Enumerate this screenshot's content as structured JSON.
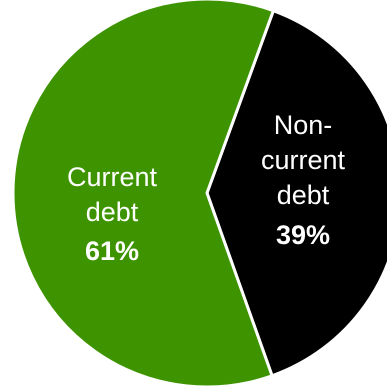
{
  "chart_data": {
    "type": "pie",
    "title": "",
    "slices": [
      {
        "label_lines": [
          "Non-",
          "current",
          "debt"
        ],
        "percent_label": "39%",
        "value": 39,
        "color": "#000000"
      },
      {
        "label_lines": [
          "Current",
          "debt"
        ],
        "percent_label": "61%",
        "value": 61,
        "color": "#3d9400"
      }
    ],
    "separator_color": "#ffffff",
    "legend": "none"
  }
}
